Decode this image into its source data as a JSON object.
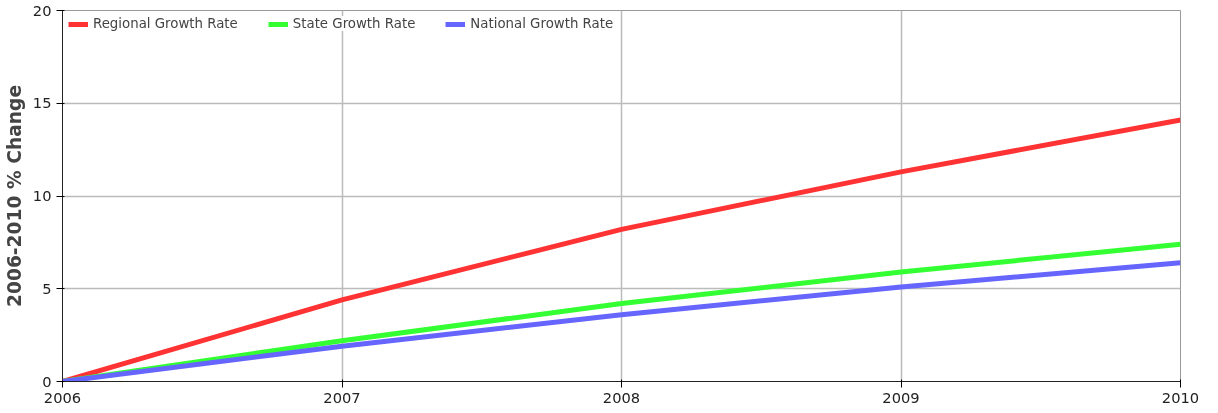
{
  "chart_data": {
    "type": "line",
    "ylabel": "2006-2010 % Change",
    "x": [
      2006,
      2007,
      2008,
      2009,
      2010
    ],
    "xlim": [
      2006,
      2010
    ],
    "xticks": [
      2006,
      2007,
      2008,
      2009,
      2010
    ],
    "ylim": [
      0,
      20
    ],
    "yticks": [
      0,
      5,
      10,
      15,
      20
    ],
    "grid": true,
    "legend": "top left",
    "marker": "none",
    "line_style": "solid",
    "series": [
      {
        "name": "Regional Growth Rate",
        "color": "#ff3333",
        "values": [
          0,
          4.4,
          8.2,
          11.3,
          14.1
        ]
      },
      {
        "name": "State Growth Rate",
        "color": "#33ff33",
        "values": [
          0,
          2.2,
          4.2,
          5.9,
          7.4
        ]
      },
      {
        "name": "National Growth Rate",
        "color": "#6666ff",
        "values": [
          0,
          1.9,
          3.6,
          5.1,
          6.4
        ]
      }
    ]
  }
}
